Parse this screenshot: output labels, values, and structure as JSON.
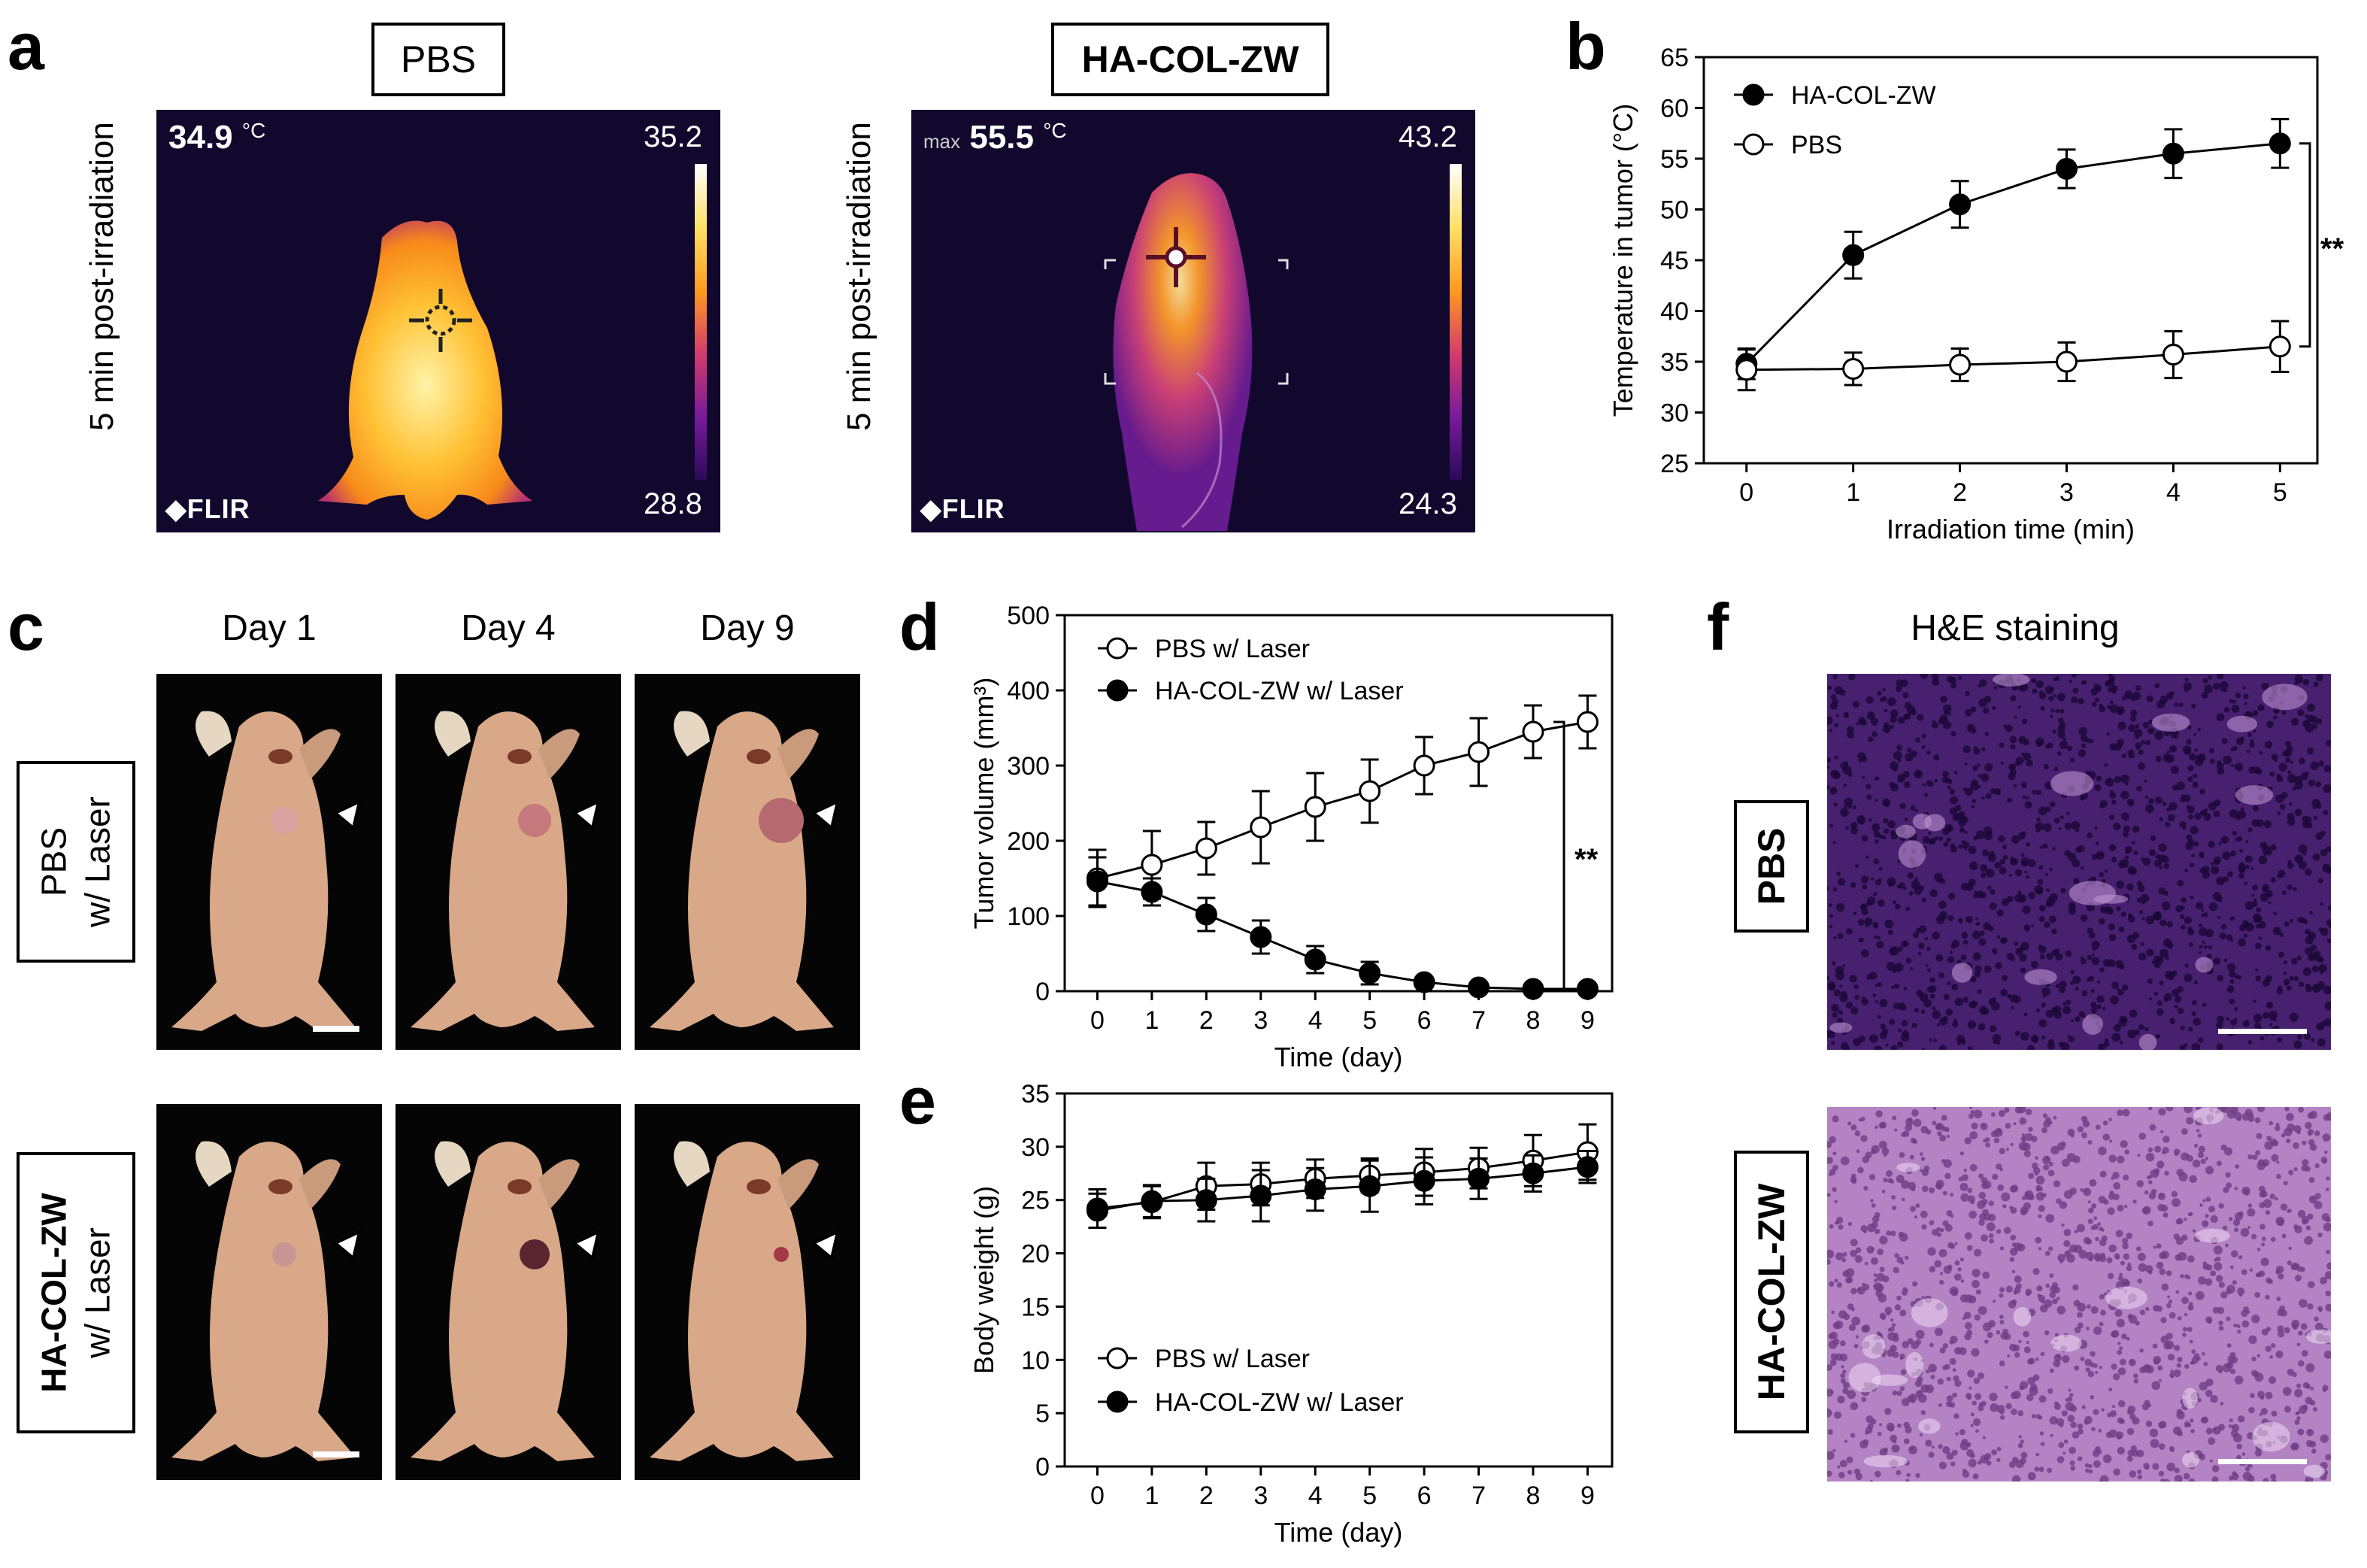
{
  "panel_labels": {
    "a": "a",
    "b": "b",
    "c": "c",
    "d": "d",
    "e": "e",
    "f": "f"
  },
  "panel_a": {
    "left": {
      "title": "PBS",
      "side_label": "5 min post-irradiation",
      "temp_value": "34.9",
      "temp_unit": "°C",
      "scale_max": "35.2",
      "scale_min": "28.8",
      "brand": "FLIR"
    },
    "right": {
      "title": "HA-COL-ZW",
      "side_label": "5 min post-irradiation",
      "temp_prefix": "max",
      "temp_value": "55.5",
      "temp_unit": "°C",
      "scale_max": "43.2",
      "scale_min": "24.3",
      "brand": "FLIR"
    }
  },
  "panel_c": {
    "days": [
      "Day 1",
      "Day 4",
      "Day 9"
    ],
    "row1_label_line1": "PBS",
    "row1_label_line2": "w/ Laser",
    "row2_label_line1": "HA-COL-ZW",
    "row2_label_line2": "w/ Laser"
  },
  "panel_f": {
    "title": "H&E staining",
    "row1_label": "PBS",
    "row2_label": "HA-COL-ZW"
  },
  "chart_data": [
    {
      "id": "b",
      "type": "line",
      "xlabel": "Irradiation time (min)",
      "ylabel": "Temperature in tumor (°C)",
      "x": [
        0,
        1,
        2,
        3,
        4,
        5
      ],
      "xlim": [
        -0.4,
        5.35
      ],
      "ylim": [
        25,
        65
      ],
      "yticks": [
        25,
        30,
        35,
        40,
        45,
        50,
        55,
        60,
        65
      ],
      "series": [
        {
          "name": "HA-COL-ZW",
          "marker": "filled",
          "values": [
            34.8,
            45.5,
            50.5,
            54.0,
            55.5,
            56.5
          ],
          "errors": [
            1.5,
            2.3,
            2.3,
            1.9,
            2.4,
            2.4
          ]
        },
        {
          "name": "PBS",
          "marker": "open",
          "values": [
            34.2,
            34.3,
            34.7,
            35.0,
            35.7,
            36.5
          ],
          "errors": [
            2.0,
            1.6,
            1.6,
            1.9,
            2.3,
            2.5
          ]
        }
      ],
      "annotation": "**"
    },
    {
      "id": "d",
      "type": "line",
      "xlabel": "Time (day)",
      "ylabel": "Tumor volume (mm³)",
      "x": [
        0,
        1,
        2,
        3,
        4,
        5,
        6,
        7,
        8,
        9
      ],
      "xlim": [
        -0.6,
        9.45
      ],
      "ylim": [
        0,
        500
      ],
      "yticks": [
        0,
        100,
        200,
        300,
        400,
        500
      ],
      "series": [
        {
          "name": "PBS w/ Laser",
          "marker": "open",
          "values": [
            150,
            168,
            190,
            218,
            245,
            266,
            300,
            318,
            345,
            358
          ],
          "errors": [
            38,
            45,
            35,
            48,
            45,
            42,
            38,
            45,
            35,
            35
          ]
        },
        {
          "name": "HA-COL-ZW w/ Laser",
          "marker": "filled",
          "values": [
            146,
            132,
            102,
            72,
            42,
            24,
            12,
            5,
            3,
            3
          ],
          "errors": [
            32,
            18,
            22,
            22,
            18,
            15,
            6,
            5,
            4,
            4
          ]
        }
      ],
      "annotation": "**"
    },
    {
      "id": "e",
      "type": "line",
      "xlabel": "Time (day)",
      "ylabel": "Body weight (g)",
      "x": [
        0,
        1,
        2,
        3,
        4,
        5,
        6,
        7,
        8,
        9
      ],
      "xlim": [
        -0.6,
        9.45
      ],
      "ylim": [
        0,
        35
      ],
      "yticks": [
        0,
        5,
        10,
        15,
        20,
        25,
        30,
        35
      ],
      "series": [
        {
          "name": "PBS w/ Laser",
          "marker": "open",
          "values": [
            24.2,
            24.8,
            26.3,
            26.5,
            27.0,
            27.3,
            27.6,
            28.0,
            28.7,
            29.5
          ],
          "errors": [
            1.8,
            1.5,
            2.2,
            2.0,
            1.8,
            1.6,
            2.2,
            1.9,
            2.4,
            2.6
          ]
        },
        {
          "name": "HA-COL-ZW w/ Laser",
          "marker": "filled",
          "values": [
            24.0,
            24.9,
            25.0,
            25.4,
            26.0,
            26.3,
            26.8,
            27.0,
            27.5,
            28.1
          ],
          "errors": [
            1.6,
            1.5,
            2.0,
            2.4,
            2.0,
            2.4,
            2.2,
            1.9,
            1.7,
            1.5
          ]
        }
      ]
    }
  ]
}
